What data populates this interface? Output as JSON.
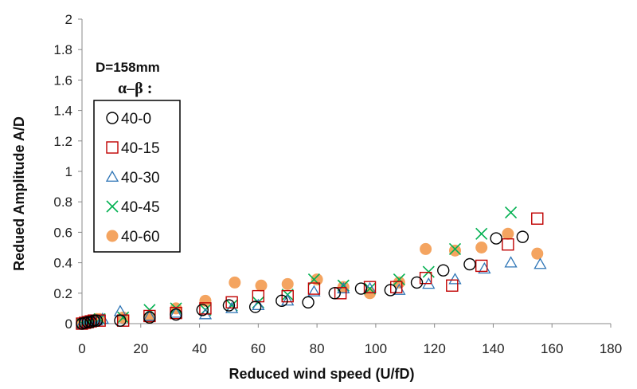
{
  "chart_data": {
    "type": "scatter",
    "xlabel": "Reduced wind speed (U/fD)",
    "ylabel": "Redued Amplitude A/D",
    "xlim": [
      0,
      180
    ],
    "ylim": [
      0,
      2
    ],
    "xticks": [
      "0",
      "20",
      "40",
      "60",
      "80",
      "100",
      "120",
      "140",
      "160",
      "180"
    ],
    "yticks": [
      "0",
      "0.2",
      "0.4",
      "0.6",
      "0.8",
      "1",
      "1.2",
      "1.4",
      "1.6",
      "1.8",
      "2"
    ],
    "annotation_diameter": "D=158mm",
    "annotation_legend_heading": "α–β :",
    "grid": false,
    "legend_position": "left",
    "series": [
      {
        "name": "40-0",
        "marker": "circle-open",
        "color": "#000000",
        "points": [
          [
            0,
            0
          ],
          [
            1,
            0.005
          ],
          [
            2,
            0.01
          ],
          [
            3,
            0.01
          ],
          [
            4,
            0.02
          ],
          [
            5,
            0.02
          ],
          [
            13,
            0.02
          ],
          [
            23,
            0.04
          ],
          [
            32,
            0.06
          ],
          [
            41,
            0.09
          ],
          [
            50,
            0.12
          ],
          [
            59,
            0.11
          ],
          [
            68,
            0.15
          ],
          [
            77,
            0.14
          ],
          [
            86,
            0.2
          ],
          [
            95,
            0.23
          ],
          [
            105,
            0.22
          ],
          [
            114,
            0.27
          ],
          [
            123,
            0.35
          ],
          [
            132,
            0.39
          ],
          [
            141,
            0.56
          ],
          [
            150,
            0.57
          ]
        ]
      },
      {
        "name": "40-15",
        "marker": "square-open",
        "color": "#c00000",
        "points": [
          [
            0,
            0
          ],
          [
            1,
            0.005
          ],
          [
            2,
            0.01
          ],
          [
            3,
            0.015
          ],
          [
            4,
            0.02
          ],
          [
            6,
            0.02
          ],
          [
            14,
            0.02
          ],
          [
            23,
            0.05
          ],
          [
            32,
            0.07
          ],
          [
            42,
            0.1
          ],
          [
            51,
            0.14
          ],
          [
            60,
            0.18
          ],
          [
            70,
            0.18
          ],
          [
            79,
            0.23
          ],
          [
            88,
            0.2
          ],
          [
            98,
            0.24
          ],
          [
            107,
            0.24
          ],
          [
            117,
            0.3
          ],
          [
            126,
            0.25
          ],
          [
            136,
            0.38
          ],
          [
            145,
            0.52
          ],
          [
            155,
            0.69
          ]
        ]
      },
      {
        "name": "40-30",
        "marker": "triangle-open",
        "color": "#2e75b6",
        "points": [
          [
            0,
            0
          ],
          [
            1,
            0.005
          ],
          [
            2,
            0.01
          ],
          [
            3,
            0.02
          ],
          [
            5,
            0.02
          ],
          [
            7,
            0.03
          ],
          [
            13,
            0.08
          ],
          [
            23,
            0.05
          ],
          [
            32,
            0.07
          ],
          [
            42,
            0.06
          ],
          [
            51,
            0.1
          ],
          [
            60,
            0.12
          ],
          [
            70,
            0.15
          ],
          [
            79,
            0.21
          ],
          [
            89,
            0.23
          ],
          [
            98,
            0.23
          ],
          [
            108,
            0.22
          ],
          [
            118,
            0.26
          ],
          [
            127,
            0.29
          ],
          [
            137,
            0.36
          ],
          [
            146,
            0.4
          ],
          [
            156,
            0.39
          ]
        ]
      },
      {
        "name": "40-45",
        "marker": "cross",
        "color": "#00b050",
        "points": [
          [
            0,
            0
          ],
          [
            1,
            0.005
          ],
          [
            2,
            0.01
          ],
          [
            3,
            0.015
          ],
          [
            4,
            0.02
          ],
          [
            6,
            0.03
          ],
          [
            14,
            0.04
          ],
          [
            23,
            0.09
          ],
          [
            32,
            0.1
          ],
          [
            42,
            0.09
          ],
          [
            51,
            0.12
          ],
          [
            60,
            0.14
          ],
          [
            70,
            0.19
          ],
          [
            79,
            0.29
          ],
          [
            89,
            0.25
          ],
          [
            98,
            0.23
          ],
          [
            108,
            0.29
          ],
          [
            118,
            0.34
          ],
          [
            127,
            0.49
          ],
          [
            136,
            0.59
          ],
          [
            146,
            0.73
          ]
        ]
      },
      {
        "name": "40-60",
        "marker": "circle-filled",
        "color": "#f4a460",
        "points": [
          [
            0,
            0
          ],
          [
            1,
            0.005
          ],
          [
            2,
            0.01
          ],
          [
            3,
            0.02
          ],
          [
            4,
            0.02
          ],
          [
            5,
            0.03
          ],
          [
            6,
            0.03
          ],
          [
            14,
            0.04
          ],
          [
            23,
            0.04
          ],
          [
            32,
            0.1
          ],
          [
            42,
            0.15
          ],
          [
            52,
            0.27
          ],
          [
            61,
            0.25
          ],
          [
            70,
            0.26
          ],
          [
            80,
            0.29
          ],
          [
            89,
            0.24
          ],
          [
            98,
            0.2
          ],
          [
            108,
            0.27
          ],
          [
            117,
            0.49
          ],
          [
            127,
            0.48
          ],
          [
            136,
            0.5
          ],
          [
            145,
            0.59
          ],
          [
            155,
            0.46
          ]
        ]
      }
    ]
  }
}
